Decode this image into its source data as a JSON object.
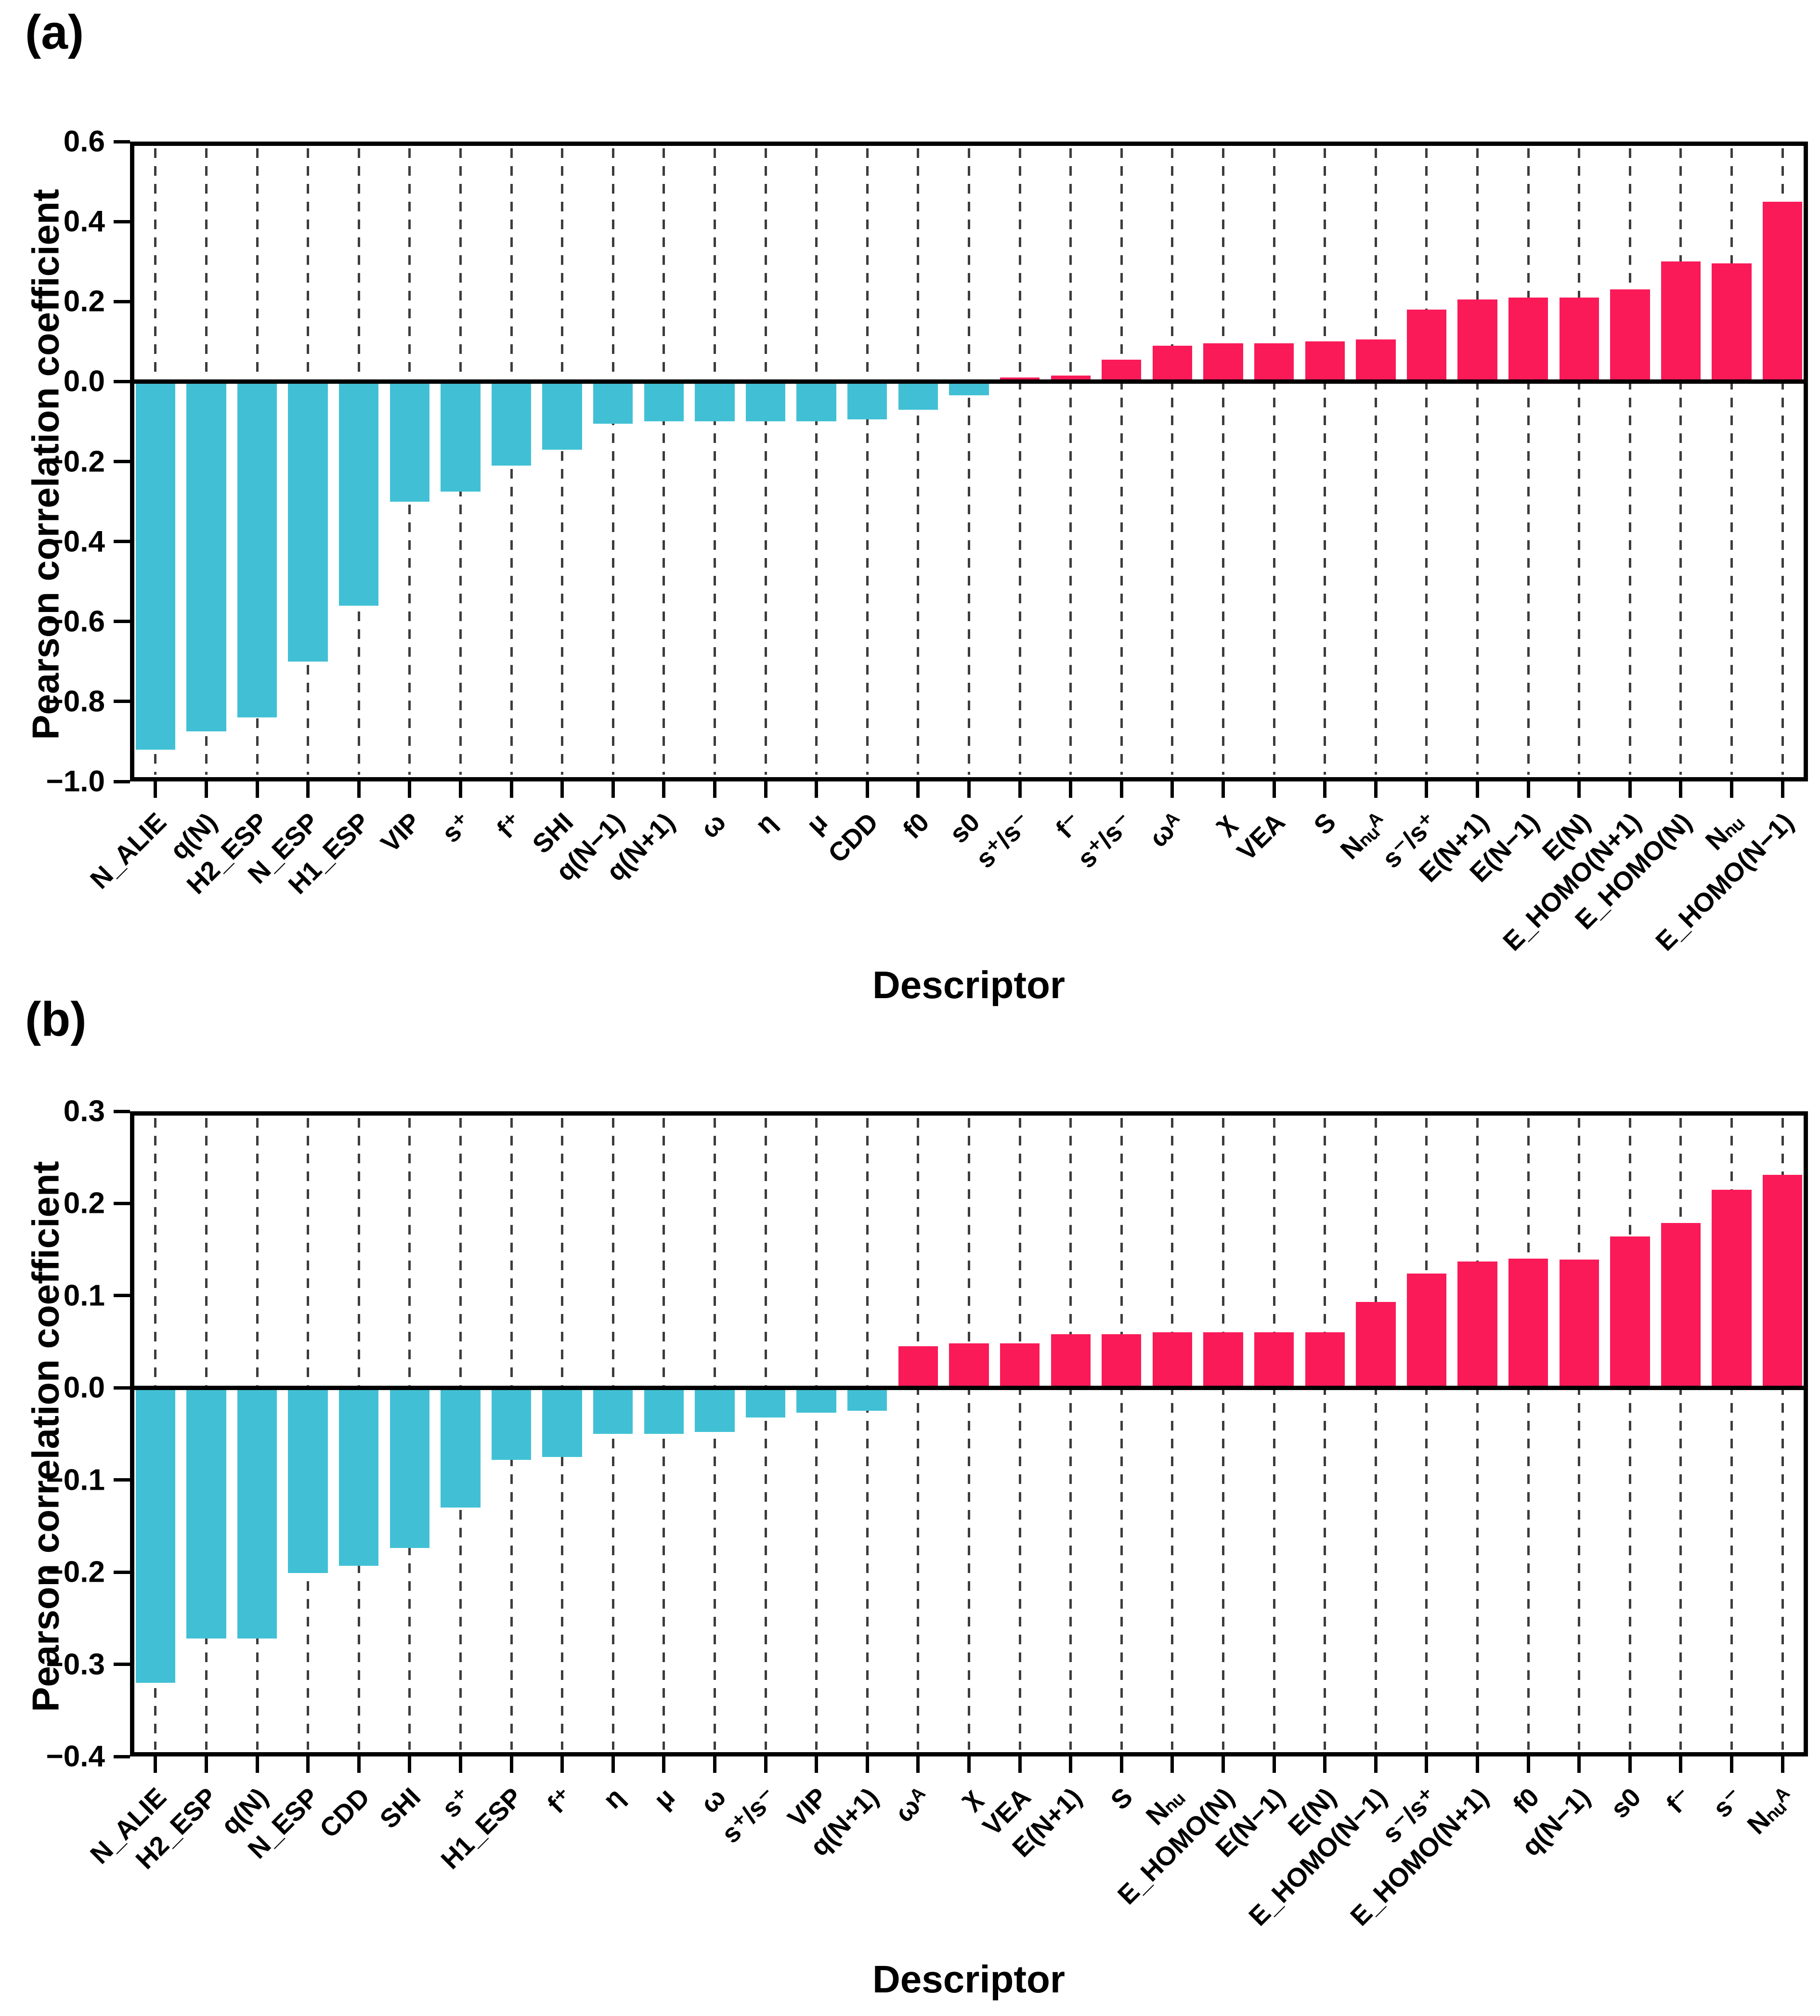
{
  "figure": {
    "background": "#ffffff",
    "axis_color": "#000000",
    "grid_style": "vertical-dashed",
    "grid_color": "#3c3c3c"
  },
  "chart_data": [
    {
      "id": "a",
      "type": "bar",
      "panel_label": "(a)",
      "ylabel": "Pearson correlation coefficient",
      "xlabel": "Descriptor",
      "ylim": [
        -1.0,
        0.6
      ],
      "yticks": [
        0.6,
        0.4,
        0.2,
        0.0,
        -0.2,
        -0.4,
        -0.6,
        -0.8,
        -1.0
      ],
      "ytick_labels": [
        "0.6",
        "0.4",
        "0.2",
        "0.0",
        "−0.2",
        "−0.4",
        "−0.6",
        "−0.8",
        "−1.0"
      ],
      "grid": true,
      "legend_position": "none",
      "positive_color": "#FA1A58",
      "negative_color": "#41C0D5",
      "categories": [
        "N_ALIE",
        "q(N)",
        "H2_ESP",
        "N_ESP",
        "H1_ESP",
        "VIP",
        "s⁺",
        "f⁺",
        "SHI",
        "q(N−1)",
        "q(N+1)",
        "ω",
        "η",
        "μ",
        "CDD",
        "f0",
        "s0",
        "s⁺/s⁻",
        "f⁻",
        "s⁺/s⁻",
        "ωᴬ",
        "χ",
        "VEA",
        "S",
        "Nₙᵤᴬ",
        "s⁻/s⁺",
        "E(N+1)",
        "E(N−1)",
        "E(N)",
        "E_HOMO(N+1)",
        "E_HOMO(N)",
        "Nₙᵤ",
        "E_HOMO(N−1)"
      ],
      "values": [
        -0.92,
        -0.875,
        -0.84,
        -0.7,
        -0.56,
        -0.3,
        -0.275,
        -0.21,
        -0.17,
        -0.105,
        -0.1,
        -0.1,
        -0.1,
        -0.1,
        -0.095,
        -0.07,
        -0.035,
        0.01,
        0.015,
        0.055,
        0.09,
        0.095,
        0.095,
        0.1,
        0.105,
        0.18,
        0.205,
        0.21,
        0.21,
        0.23,
        0.3,
        0.295,
        0.45
      ]
    },
    {
      "id": "b",
      "type": "bar",
      "panel_label": "(b)",
      "ylabel": "Pearson correlation coefficient",
      "xlabel": "Descriptor",
      "ylim": [
        -0.4,
        0.3
      ],
      "yticks": [
        0.3,
        0.2,
        0.1,
        0.0,
        -0.1,
        -0.2,
        -0.3,
        -0.4
      ],
      "ytick_labels": [
        "0.3",
        "0.2",
        "0.1",
        "0.0",
        "−0.1",
        "−0.2",
        "−0.3",
        "−0.4"
      ],
      "grid": true,
      "legend_position": "none",
      "positive_color": "#FA1A58",
      "negative_color": "#41C0D5",
      "categories": [
        "N_ALIE",
        "H2_ESP",
        "q(N)",
        "N_ESP",
        "CDD",
        "SHI",
        "s⁺",
        "H1_ESP",
        "f⁺",
        "η",
        "μ",
        "ω",
        "s⁺/s⁻",
        "VIP",
        "q(N+1)",
        "ωᴬ",
        "χ",
        "VEA",
        "E(N+1)",
        "S",
        "Nₙᵤ",
        "E_HOMO(N)",
        "E(N−1)",
        "E(N)",
        "E_HOMO(N−1)",
        "s⁻/s⁺",
        "E_HOMO(N+1)",
        "f0",
        "q(N−1)",
        "s0",
        "f⁻",
        "s⁻",
        "Nₙᵤᴬ"
      ],
      "values": [
        -0.32,
        -0.272,
        -0.272,
        -0.201,
        -0.193,
        -0.174,
        -0.13,
        -0.078,
        -0.075,
        -0.05,
        -0.05,
        -0.048,
        -0.032,
        -0.027,
        -0.025,
        0.045,
        0.048,
        0.048,
        0.058,
        0.058,
        0.06,
        0.06,
        0.06,
        0.06,
        0.093,
        0.124,
        0.137,
        0.14,
        0.139,
        0.164,
        0.179,
        0.215,
        0.231
      ]
    }
  ]
}
